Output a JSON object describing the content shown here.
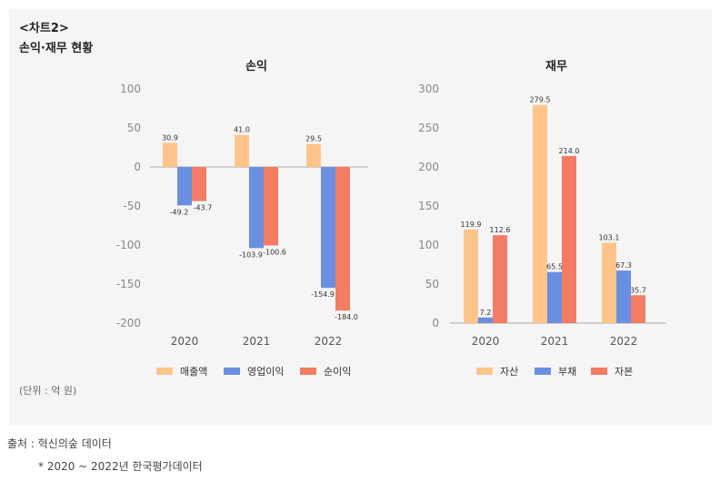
{
  "header": {
    "chart_label": "<차트2>",
    "subtitle": "손익·재무 현황",
    "unit": "(단위 : 억 원)"
  },
  "footer": {
    "source": "출처 : 혁신의숲 데이터",
    "note": "* 2020 ~ 2022년 한국평가데이터"
  },
  "colors": {
    "orange": "#ffc48a",
    "blue": "#6b8fe0",
    "red": "#f37c63"
  },
  "chart_data": [
    {
      "type": "bar",
      "title": "손익",
      "categories": [
        "2020",
        "2021",
        "2022"
      ],
      "ylim": [
        -200,
        100
      ],
      "yticks": [
        100,
        50,
        0,
        -50,
        -100,
        -150,
        -200
      ],
      "series": [
        {
          "name": "매출액",
          "color": "#ffc48a",
          "values": [
            30.9,
            41.0,
            29.5
          ],
          "labels": [
            "30.9",
            "41.0",
            "29.5"
          ]
        },
        {
          "name": "영업이익",
          "color": "#6b8fe0",
          "values": [
            -49.2,
            -103.9,
            -154.9
          ],
          "labels": [
            "-49.2",
            "-103.9",
            "-154.9"
          ]
        },
        {
          "name": "순이익",
          "color": "#f37c63",
          "values": [
            -43.7,
            -100.6,
            -184.0
          ],
          "labels": [
            "-43.7",
            "-100.6",
            "-184.0"
          ]
        }
      ]
    },
    {
      "type": "bar",
      "title": "재무",
      "categories": [
        "2020",
        "2021",
        "2022"
      ],
      "ylim": [
        0,
        300
      ],
      "yticks": [
        300,
        250,
        200,
        150,
        100,
        50,
        0
      ],
      "series": [
        {
          "name": "자산",
          "color": "#ffc48a",
          "values": [
            119.9,
            279.5,
            103.1
          ],
          "labels": [
            "119.9",
            "279.5",
            "103.1"
          ]
        },
        {
          "name": "부채",
          "color": "#6b8fe0",
          "values": [
            7.2,
            65.5,
            67.3
          ],
          "labels": [
            "7.2",
            "65.5",
            "67.3"
          ]
        },
        {
          "name": "자본",
          "color": "#f37c63",
          "values": [
            112.6,
            214.0,
            35.7
          ],
          "labels": [
            "112.6",
            "214.0",
            "35.7"
          ]
        }
      ]
    }
  ]
}
